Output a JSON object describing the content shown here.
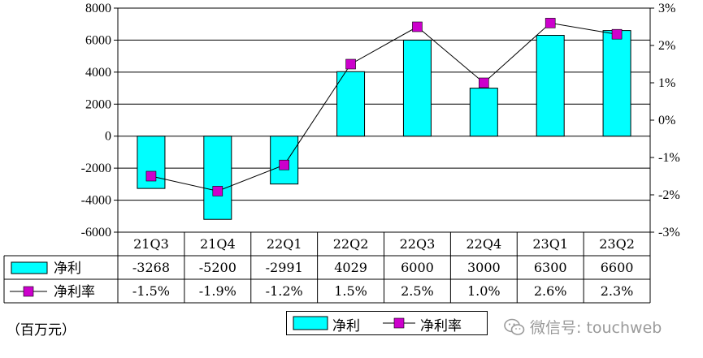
{
  "chart_data": {
    "type": "bar",
    "categories": [
      "21Q3",
      "21Q4",
      "22Q1",
      "22Q2",
      "22Q3",
      "22Q4",
      "23Q1",
      "23Q2"
    ],
    "series": [
      {
        "name": "净利",
        "type": "bar",
        "axis": "left",
        "color": "#00ffff",
        "values": [
          -3268,
          -5200,
          -2991,
          4029,
          6000,
          3000,
          6300,
          6600
        ],
        "labels": [
          "-3268",
          "-5200",
          "-2991",
          "4029",
          "6000",
          "3000",
          "6300",
          "6600"
        ]
      },
      {
        "name": "净利率",
        "type": "line",
        "axis": "right",
        "color": "#cc00cc",
        "values": [
          -1.5,
          -1.9,
          -1.2,
          1.5,
          2.5,
          1.0,
          2.6,
          2.3
        ],
        "labels": [
          "-1.5%",
          "-1.9%",
          "-1.2%",
          "1.5%",
          "2.5%",
          "1.0%",
          "2.6%",
          "2.3%"
        ]
      }
    ],
    "y_left": {
      "range": [
        -6000,
        8000
      ],
      "ticks": [
        8000,
        6000,
        4000,
        2000,
        0,
        -2000,
        -4000,
        -6000
      ],
      "tick_labels": [
        "8000",
        "6000",
        "4000",
        "2000",
        "0",
        "-2000",
        "-4000",
        "-6000"
      ]
    },
    "y_right": {
      "range": [
        -3,
        3
      ],
      "ticks": [
        3,
        2,
        1,
        0,
        -1,
        -2,
        -3
      ],
      "tick_labels": [
        "3%",
        "2%",
        "1%",
        "0%",
        "-1%",
        "-2%",
        "-3%"
      ]
    },
    "grid": true,
    "legend_position": "bottom"
  },
  "unit_label": "（百万元）",
  "legend": {
    "bar_label": "净利",
    "line_label": "净利率"
  },
  "watermark": {
    "text": "微信号: touchweb"
  }
}
